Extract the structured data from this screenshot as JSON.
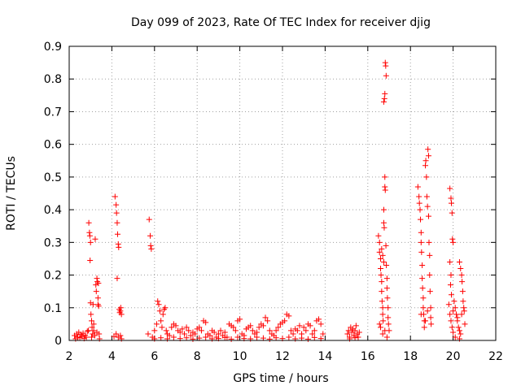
{
  "chart_data": {
    "type": "scatter",
    "title": "Day 099 of 2023, Rate Of TEC Index for receiver djig",
    "xlabel": "GPS time / hours",
    "ylabel": "ROTI / TECUs",
    "xlim": [
      2,
      22
    ],
    "ylim": [
      0,
      0.9
    ],
    "x_ticks": [
      2,
      4,
      6,
      8,
      10,
      12,
      14,
      16,
      18,
      20,
      22
    ],
    "x_tick_labels": [
      "2",
      "4",
      "6",
      "8",
      "10",
      "12",
      "14",
      "16",
      "18",
      "20",
      "22"
    ],
    "y_ticks": [
      0,
      0.1,
      0.2,
      0.3,
      0.4,
      0.5,
      0.6,
      0.7,
      0.8,
      0.9
    ],
    "y_tick_labels": [
      "0",
      "0.1",
      "0.2",
      "0.3",
      "0.4",
      "0.5",
      "0.6",
      "0.7",
      "0.8",
      "0.9"
    ],
    "grid": true,
    "legend": false,
    "marker": "+",
    "color": "#ff0000",
    "points": [
      [
        2.25,
        0.015
      ],
      [
        2.3,
        0.005
      ],
      [
        2.35,
        0.02
      ],
      [
        2.4,
        0.01
      ],
      [
        2.45,
        0.025
      ],
      [
        2.5,
        0.008
      ],
      [
        2.55,
        0.018
      ],
      [
        2.6,
        0.012
      ],
      [
        2.65,
        0.022
      ],
      [
        2.7,
        0.006
      ],
      [
        2.75,
        0.016
      ],
      [
        2.8,
        0.01
      ],
      [
        2.85,
        0.028
      ],
      [
        2.9,
        0.03
      ],
      [
        2.92,
        0.36
      ],
      [
        2.95,
        0.33
      ],
      [
        2.97,
        0.32
      ],
      [
        3.0,
        0.3
      ],
      [
        2.98,
        0.245
      ],
      [
        3.0,
        0.115
      ],
      [
        3.02,
        0.08
      ],
      [
        3.05,
        0.06
      ],
      [
        3.07,
        0.04
      ],
      [
        3.1,
        0.02
      ],
      [
        3.12,
        0.11
      ],
      [
        3.15,
        0.05
      ],
      [
        3.2,
        0.015
      ],
      [
        3.22,
        0.31
      ],
      [
        3.25,
        0.17
      ],
      [
        3.27,
        0.15
      ],
      [
        3.3,
        0.19
      ],
      [
        3.32,
        0.18
      ],
      [
        3.35,
        0.13
      ],
      [
        3.35,
        0.11
      ],
      [
        3.37,
        0.175
      ],
      [
        3.38,
        0.105
      ],
      [
        3.4,
        0.02
      ],
      [
        3.42,
        0.005
      ],
      [
        3.05,
        0.01
      ],
      [
        3.15,
        0.03
      ],
      [
        3.3,
        0.025
      ],
      [
        4.15,
        0.44
      ],
      [
        4.2,
        0.415
      ],
      [
        4.22,
        0.39
      ],
      [
        4.25,
        0.36
      ],
      [
        4.27,
        0.325
      ],
      [
        4.3,
        0.295
      ],
      [
        4.32,
        0.285
      ],
      [
        4.25,
        0.19
      ],
      [
        4.35,
        0.095
      ],
      [
        4.37,
        0.085
      ],
      [
        4.4,
        0.09
      ],
      [
        4.42,
        0.1
      ],
      [
        4.45,
        0.08
      ],
      [
        4.2,
        0.02
      ],
      [
        4.3,
        0.01
      ],
      [
        4.4,
        0.015
      ],
      [
        4.45,
        0.005
      ],
      [
        4.1,
        0.012
      ],
      [
        5.75,
        0.37
      ],
      [
        5.8,
        0.32
      ],
      [
        5.82,
        0.29
      ],
      [
        5.85,
        0.28
      ],
      [
        5.7,
        0.02
      ],
      [
        5.9,
        0.01
      ],
      [
        6.0,
        0.03
      ],
      [
        6.1,
        0.05
      ],
      [
        6.15,
        0.12
      ],
      [
        6.2,
        0.11
      ],
      [
        6.25,
        0.09
      ],
      [
        6.3,
        0.06
      ],
      [
        6.35,
        0.04
      ],
      [
        6.4,
        0.08
      ],
      [
        6.45,
        0.095
      ],
      [
        6.5,
        0.1
      ],
      [
        6.55,
        0.03
      ],
      [
        6.6,
        0.02
      ],
      [
        6.7,
        0.015
      ],
      [
        6.8,
        0.04
      ],
      [
        6.9,
        0.05
      ],
      [
        7.0,
        0.045
      ],
      [
        7.1,
        0.03
      ],
      [
        7.2,
        0.025
      ],
      [
        7.3,
        0.035
      ],
      [
        7.4,
        0.02
      ],
      [
        7.5,
        0.04
      ],
      [
        7.6,
        0.03
      ],
      [
        7.7,
        0.015
      ],
      [
        7.8,
        0.025
      ],
      [
        7.9,
        0.02
      ],
      [
        8.0,
        0.035
      ],
      [
        8.1,
        0.04
      ],
      [
        8.2,
        0.03
      ],
      [
        8.3,
        0.06
      ],
      [
        8.4,
        0.055
      ],
      [
        8.5,
        0.02
      ],
      [
        8.6,
        0.015
      ],
      [
        8.7,
        0.03
      ],
      [
        8.8,
        0.025
      ],
      [
        8.9,
        0.01
      ],
      [
        9.0,
        0.02
      ],
      [
        9.1,
        0.03
      ],
      [
        9.2,
        0.015
      ],
      [
        9.3,
        0.025
      ],
      [
        9.4,
        0.01
      ],
      [
        9.5,
        0.05
      ],
      [
        9.6,
        0.045
      ],
      [
        9.7,
        0.04
      ],
      [
        9.8,
        0.03
      ],
      [
        9.9,
        0.06
      ],
      [
        10.0,
        0.065
      ],
      [
        10.1,
        0.02
      ],
      [
        10.2,
        0.015
      ],
      [
        10.3,
        0.035
      ],
      [
        10.4,
        0.04
      ],
      [
        10.5,
        0.045
      ],
      [
        10.6,
        0.03
      ],
      [
        10.7,
        0.02
      ],
      [
        10.8,
        0.025
      ],
      [
        10.9,
        0.04
      ],
      [
        11.0,
        0.05
      ],
      [
        11.1,
        0.045
      ],
      [
        11.2,
        0.07
      ],
      [
        11.3,
        0.06
      ],
      [
        11.4,
        0.03
      ],
      [
        11.5,
        0.02
      ],
      [
        11.6,
        0.015
      ],
      [
        11.7,
        0.03
      ],
      [
        11.8,
        0.04
      ],
      [
        11.9,
        0.05
      ],
      [
        12.0,
        0.055
      ],
      [
        12.1,
        0.06
      ],
      [
        12.2,
        0.08
      ],
      [
        12.3,
        0.075
      ],
      [
        12.4,
        0.03
      ],
      [
        12.5,
        0.02
      ],
      [
        12.6,
        0.035
      ],
      [
        12.7,
        0.03
      ],
      [
        12.8,
        0.045
      ],
      [
        12.9,
        0.02
      ],
      [
        13.0,
        0.04
      ],
      [
        13.1,
        0.03
      ],
      [
        13.2,
        0.05
      ],
      [
        13.3,
        0.045
      ],
      [
        13.4,
        0.02
      ],
      [
        13.5,
        0.03
      ],
      [
        13.6,
        0.06
      ],
      [
        13.7,
        0.065
      ],
      [
        13.8,
        0.05
      ],
      [
        13.9,
        0.02
      ],
      [
        6.0,
        0.005
      ],
      [
        6.3,
        0.008
      ],
      [
        6.6,
        0.005
      ],
      [
        6.9,
        0.01
      ],
      [
        7.2,
        0.006
      ],
      [
        7.5,
        0.008
      ],
      [
        7.8,
        0.004
      ],
      [
        8.1,
        0.007
      ],
      [
        8.4,
        0.01
      ],
      [
        8.7,
        0.005
      ],
      [
        9.0,
        0.006
      ],
      [
        9.3,
        0.009
      ],
      [
        9.6,
        0.004
      ],
      [
        9.9,
        0.01
      ],
      [
        10.2,
        0.006
      ],
      [
        10.5,
        0.005
      ],
      [
        10.8,
        0.01
      ],
      [
        11.1,
        0.007
      ],
      [
        11.4,
        0.004
      ],
      [
        11.7,
        0.008
      ],
      [
        12.0,
        0.006
      ],
      [
        12.3,
        0.01
      ],
      [
        12.6,
        0.005
      ],
      [
        12.9,
        0.007
      ],
      [
        13.2,
        0.004
      ],
      [
        13.5,
        0.009
      ],
      [
        13.8,
        0.006
      ],
      [
        15.05,
        0.02
      ],
      [
        15.1,
        0.03
      ],
      [
        15.15,
        0.01
      ],
      [
        15.2,
        0.04
      ],
      [
        15.25,
        0.025
      ],
      [
        15.3,
        0.035
      ],
      [
        15.35,
        0.015
      ],
      [
        15.4,
        0.03
      ],
      [
        15.45,
        0.045
      ],
      [
        15.5,
        0.02
      ],
      [
        15.55,
        0.01
      ],
      [
        15.6,
        0.025
      ],
      [
        15.15,
        0.005
      ],
      [
        15.4,
        0.008
      ],
      [
        16.5,
        0.32
      ],
      [
        16.55,
        0.3
      ],
      [
        16.55,
        0.27
      ],
      [
        16.6,
        0.25
      ],
      [
        16.6,
        0.22
      ],
      [
        16.62,
        0.2
      ],
      [
        16.65,
        0.18
      ],
      [
        16.65,
        0.15
      ],
      [
        16.67,
        0.12
      ],
      [
        16.7,
        0.1
      ],
      [
        16.7,
        0.08
      ],
      [
        16.72,
        0.06
      ],
      [
        16.75,
        0.4
      ],
      [
        16.75,
        0.36
      ],
      [
        16.77,
        0.345
      ],
      [
        16.8,
        0.47
      ],
      [
        16.8,
        0.5
      ],
      [
        16.82,
        0.46
      ],
      [
        16.75,
        0.73
      ],
      [
        16.78,
        0.74
      ],
      [
        16.8,
        0.755
      ],
      [
        16.82,
        0.85
      ],
      [
        16.84,
        0.84
      ],
      [
        16.86,
        0.81
      ],
      [
        16.85,
        0.29
      ],
      [
        16.87,
        0.23
      ],
      [
        16.9,
        0.19
      ],
      [
        16.9,
        0.16
      ],
      [
        16.92,
        0.13
      ],
      [
        16.95,
        0.1
      ],
      [
        16.95,
        0.07
      ],
      [
        16.97,
        0.05
      ],
      [
        17.0,
        0.03
      ],
      [
        16.6,
        0.04
      ],
      [
        16.7,
        0.02
      ],
      [
        16.8,
        0.03
      ],
      [
        16.9,
        0.01
      ],
      [
        16.55,
        0.05
      ],
      [
        16.65,
        0.28
      ],
      [
        16.7,
        0.26
      ],
      [
        16.75,
        0.24
      ],
      [
        18.35,
        0.47
      ],
      [
        18.4,
        0.44
      ],
      [
        18.42,
        0.42
      ],
      [
        18.45,
        0.4
      ],
      [
        18.47,
        0.37
      ],
      [
        18.5,
        0.33
      ],
      [
        18.5,
        0.3
      ],
      [
        18.52,
        0.27
      ],
      [
        18.55,
        0.23
      ],
      [
        18.55,
        0.19
      ],
      [
        18.57,
        0.16
      ],
      [
        18.6,
        0.13
      ],
      [
        18.6,
        0.1
      ],
      [
        18.62,
        0.08
      ],
      [
        18.65,
        0.06
      ],
      [
        18.65,
        0.04
      ],
      [
        18.7,
        0.535
      ],
      [
        18.72,
        0.55
      ],
      [
        18.75,
        0.5
      ],
      [
        18.77,
        0.44
      ],
      [
        18.8,
        0.41
      ],
      [
        18.82,
        0.585
      ],
      [
        18.85,
        0.565
      ],
      [
        18.85,
        0.38
      ],
      [
        18.87,
        0.3
      ],
      [
        18.9,
        0.26
      ],
      [
        18.9,
        0.2
      ],
      [
        18.92,
        0.15
      ],
      [
        18.95,
        0.1
      ],
      [
        18.95,
        0.07
      ],
      [
        18.97,
        0.05
      ],
      [
        18.5,
        0.08
      ],
      [
        18.7,
        0.06
      ],
      [
        18.8,
        0.09
      ],
      [
        19.85,
        0.465
      ],
      [
        19.9,
        0.435
      ],
      [
        19.92,
        0.42
      ],
      [
        19.95,
        0.39
      ],
      [
        19.97,
        0.31
      ],
      [
        20.0,
        0.3
      ],
      [
        19.85,
        0.24
      ],
      [
        19.9,
        0.2
      ],
      [
        19.88,
        0.17
      ],
      [
        19.92,
        0.14
      ],
      [
        19.8,
        0.11
      ],
      [
        19.85,
        0.08
      ],
      [
        19.9,
        0.06
      ],
      [
        19.95,
        0.04
      ],
      [
        20.0,
        0.025
      ],
      [
        20.05,
        0.12
      ],
      [
        20.1,
        0.1
      ],
      [
        20.15,
        0.08
      ],
      [
        20.2,
        0.06
      ],
      [
        20.25,
        0.04
      ],
      [
        20.3,
        0.03
      ],
      [
        20.35,
        0.02
      ],
      [
        20.3,
        0.24
      ],
      [
        20.35,
        0.22
      ],
      [
        20.4,
        0.2
      ],
      [
        20.42,
        0.18
      ],
      [
        20.45,
        0.15
      ],
      [
        20.47,
        0.12
      ],
      [
        20.5,
        0.1
      ],
      [
        20.52,
        0.09
      ],
      [
        20.55,
        0.05
      ],
      [
        20.0,
        0.09
      ],
      [
        20.2,
        0.07
      ],
      [
        20.4,
        0.08
      ],
      [
        20.1,
        0.01
      ],
      [
        20.3,
        0.005
      ]
    ]
  }
}
